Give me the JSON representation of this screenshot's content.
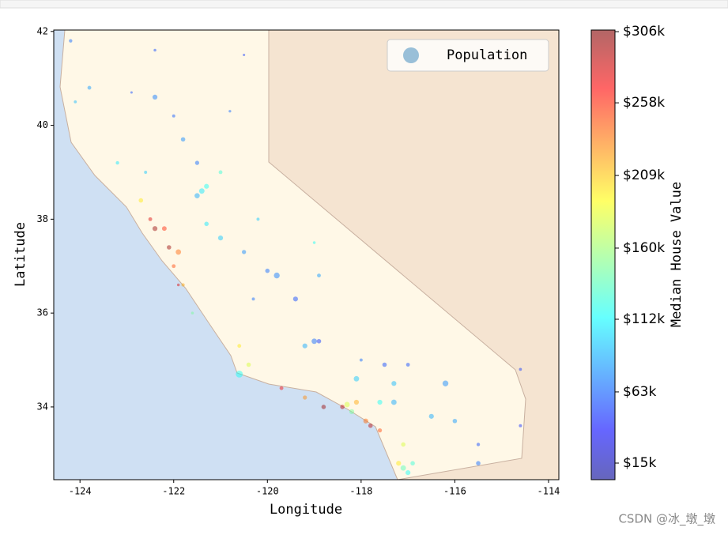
{
  "chart_data": {
    "type": "scatter",
    "xlabel": "Longitude",
    "ylabel": "Latitude",
    "xlim": [
      -124.56,
      -113.78
    ],
    "ylim": [
      32.45,
      42.03
    ],
    "xticks": [
      -124,
      -122,
      -120,
      -118,
      -116,
      -114
    ],
    "yticks": [
      34,
      36,
      38,
      40,
      42
    ],
    "legend": "upper right",
    "colormap": "jet",
    "alpha": 0.45,
    "series": [
      {
        "name": "Population",
        "x": [
          -124.2,
          -123.8,
          -124.1,
          -122.4,
          -122.4,
          -121.8,
          -122.0,
          -120.5,
          -120.8,
          -121.5,
          -121.0,
          -121.4,
          -121.3,
          -121.5,
          -122.7,
          -122.5,
          -122.4,
          -122.2,
          -122.1,
          -121.9,
          -122.0,
          -121.8,
          -121.9,
          -121.3,
          -121.0,
          -120.5,
          -120.0,
          -119.8,
          -119.4,
          -119.0,
          -119.2,
          -118.9,
          -118.1,
          -117.3,
          -117.0,
          -116.2,
          -115.5,
          -116.5,
          -116.0,
          -120.6,
          -120.4,
          -119.7,
          -119.2,
          -118.8,
          -118.4,
          -118.3,
          -118.2,
          -118.1,
          -117.9,
          -117.8,
          -117.6,
          -117.3,
          -117.6,
          -117.1,
          -117.1,
          -117.2,
          -116.9,
          -117.0,
          -118.0,
          -120.6,
          -121.6,
          -120.2,
          -119.0,
          -123.2,
          -122.6,
          -114.6,
          -114.6,
          -115.5,
          -118.9,
          -120.3,
          -117.5,
          -122.9
        ],
        "y": [
          41.8,
          40.8,
          40.5,
          41.6,
          40.6,
          39.7,
          40.2,
          41.5,
          40.3,
          39.2,
          39.0,
          38.6,
          38.7,
          38.5,
          38.4,
          38.0,
          37.8,
          37.8,
          37.4,
          37.3,
          37.0,
          36.6,
          36.6,
          37.9,
          37.6,
          37.3,
          36.9,
          36.8,
          36.3,
          35.4,
          35.3,
          35.4,
          34.6,
          34.5,
          34.9,
          34.5,
          32.8,
          33.8,
          33.7,
          34.7,
          34.9,
          34.4,
          34.2,
          34.0,
          34.0,
          34.05,
          33.9,
          34.1,
          33.7,
          33.6,
          33.5,
          34.1,
          34.1,
          33.2,
          32.7,
          32.8,
          32.8,
          32.6,
          35.0,
          35.3,
          36.0,
          38.0,
          37.5,
          39.2,
          39.0,
          34.8,
          33.6,
          33.2,
          36.8,
          36.3,
          34.9,
          40.7
        ],
        "sizes": [
          1200,
          1500,
          900,
          800,
          2500,
          2000,
          1000,
          600,
          700,
          1800,
          1500,
          3000,
          2500,
          2800,
          2000,
          1500,
          2500,
          2200,
          2000,
          3000,
          1500,
          1200,
          800,
          2000,
          2500,
          1800,
          2000,
          3500,
          2500,
          3000,
          2500,
          2000,
          3000,
          2500,
          1500,
          3500,
          2000,
          2500,
          2000,
          5000,
          2000,
          1500,
          1800,
          2000,
          2000,
          3000,
          2500,
          2500,
          2500,
          2000,
          1800,
          3000,
          2500,
          2000,
          3000,
          2500,
          2000,
          2500,
          1000,
          1500,
          800,
          1000,
          800,
          1200,
          1000,
          900,
          1000,
          1200,
          1500,
          1000,
          2000,
          600
        ],
        "color_values": [
          70000,
          85000,
          95000,
          60000,
          75000,
          80000,
          65000,
          55000,
          70000,
          70000,
          130000,
          110000,
          120000,
          90000,
          200000,
          280000,
          300000,
          260000,
          300000,
          240000,
          250000,
          220000,
          280000,
          110000,
          100000,
          80000,
          70000,
          75000,
          60000,
          70000,
          90000,
          55000,
          100000,
          95000,
          60000,
          80000,
          70000,
          90000,
          85000,
          120000,
          180000,
          270000,
          230000,
          300000,
          290000,
          180000,
          150000,
          220000,
          240000,
          290000,
          250000,
          90000,
          120000,
          180000,
          140000,
          200000,
          130000,
          120000,
          70000,
          200000,
          150000,
          100000,
          120000,
          110000,
          100000,
          55000,
          50000,
          60000,
          85000,
          70000,
          60000,
          60000
        ]
      }
    ],
    "colorbar": {
      "label": "Median House Value",
      "clim": [
        3800,
        307100
      ],
      "ticks": [
        {
          "value": 15000,
          "label": "$15k"
        },
        {
          "value": 63000,
          "label": "$63k"
        },
        {
          "value": 112000,
          "label": "$112k"
        },
        {
          "value": 160000,
          "label": "$160k"
        },
        {
          "value": 209000,
          "label": "$209k"
        },
        {
          "value": 258000,
          "label": "$258k"
        },
        {
          "value": 306000,
          "label": "$306k"
        }
      ]
    }
  },
  "watermark": "CSDN @冰_墩_墩"
}
